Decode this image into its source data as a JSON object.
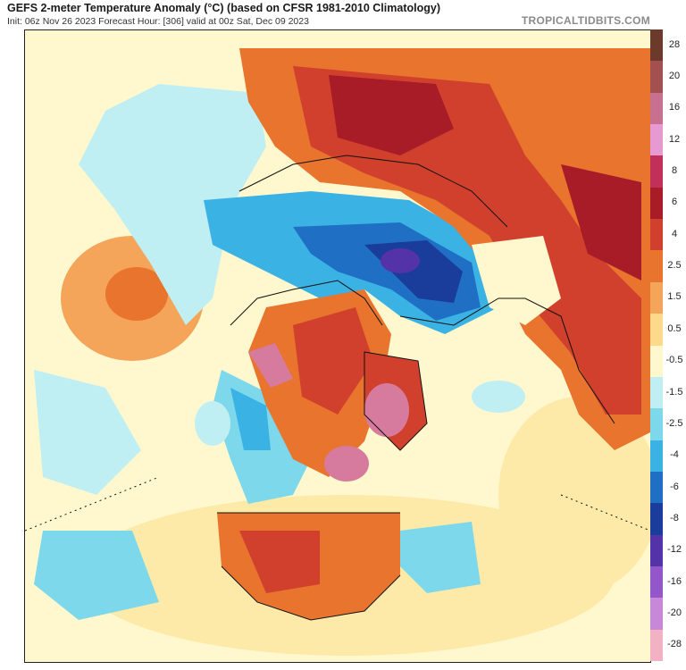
{
  "header": {
    "title": "GEFS 2-meter Temperature Anomaly (°C) (based on CFSR 1981-2010 Climatology)",
    "subtitle": "Init: 06z Nov 26 2023   Forecast Hour: [306]   valid at 00z Sat, Dec 09 2023",
    "brand": "TROPICALTIDBITS.COM"
  },
  "colorbar": {
    "labels": [
      "28",
      "20",
      "16",
      "12",
      "8",
      "6",
      "4",
      "2.5",
      "1.5",
      "0.5",
      "-0.5",
      "-1.5",
      "-2.5",
      "-4",
      "-6",
      "-8",
      "-12",
      "-16",
      "-20",
      "-28"
    ],
    "colors": [
      "#6b3a2a",
      "#a35050",
      "#c77090",
      "#e79ad2",
      "#c0305a",
      "#a81c28",
      "#d0402c",
      "#e8742e",
      "#f5a55a",
      "#fdd98c",
      "#fff8cf",
      "#bfeff2",
      "#7cd8ea",
      "#3ab2e4",
      "#1f6fc4",
      "#1a3c9a",
      "#5433a8",
      "#9457c9",
      "#c888d8",
      "#f2b2c4"
    ]
  },
  "map": {
    "colors": {
      "background_warm": "#fff8cf",
      "ocean_light": "#fdeaa8",
      "cold_light": "#bfeff2",
      "cold_mid": "#7cd8ea",
      "cold_strong": "#3ab2e4",
      "cold_deep": "#1f6fc4",
      "cold_extreme": "#1a3c9a",
      "violet": "#5433a8",
      "warm_light": "#f5a55a",
      "warm_mid": "#e8742e",
      "warm_strong": "#d0402c",
      "warm_deep": "#a81c28",
      "pink": "#d67a9e",
      "border_line": "#111111"
    }
  }
}
